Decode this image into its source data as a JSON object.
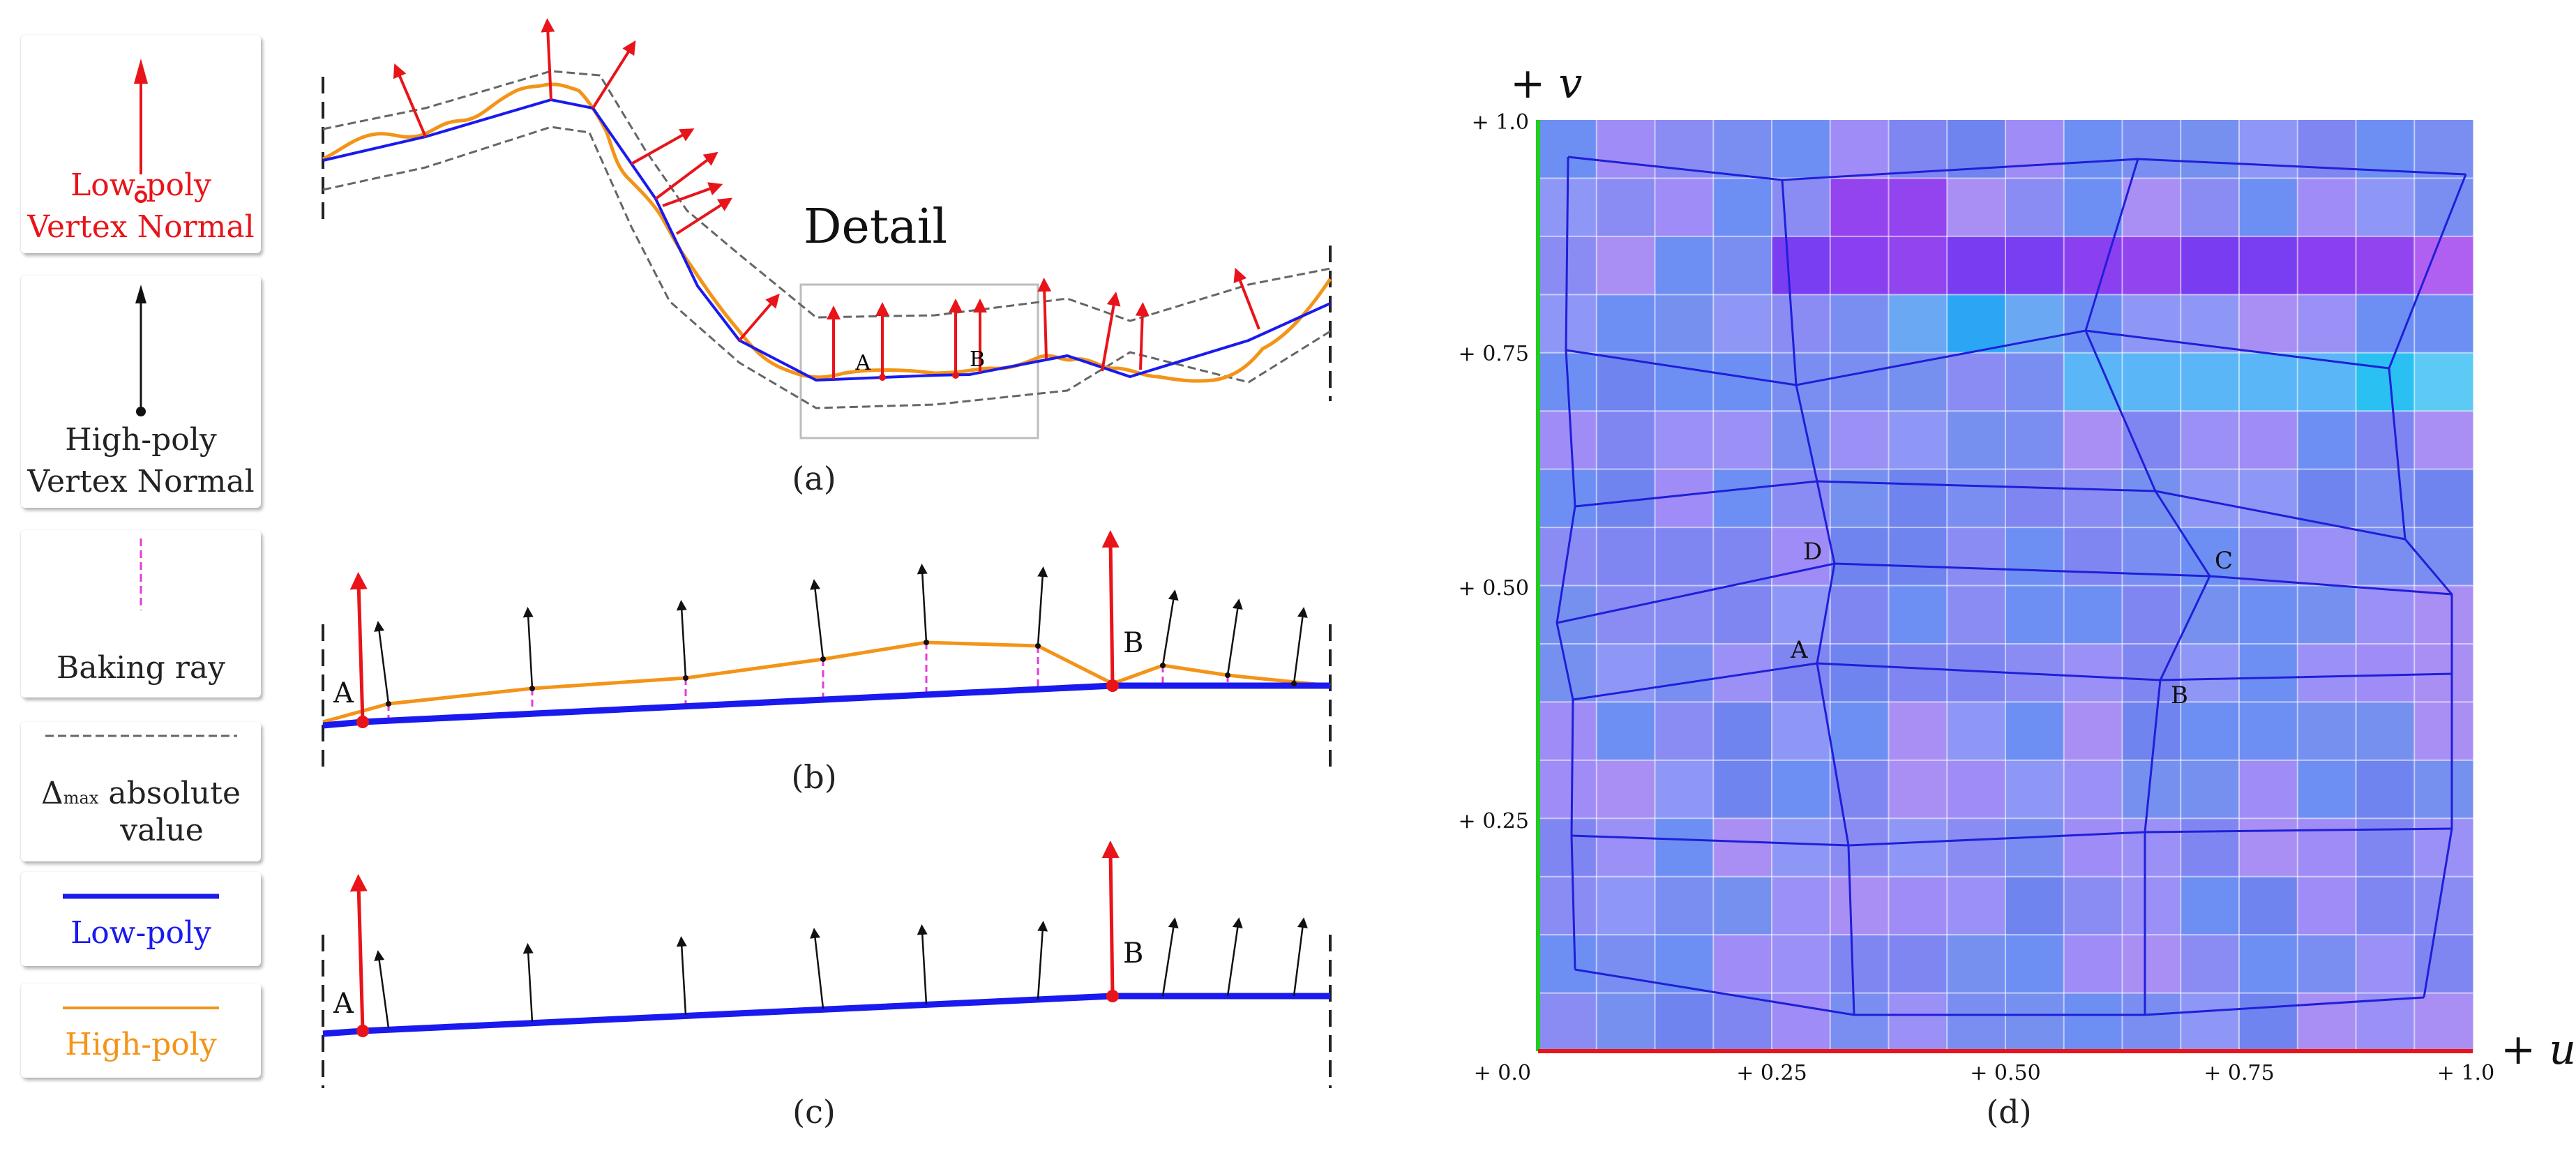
{
  "legend": {
    "low_poly_vertex_normal": [
      "Low-poly",
      "Vertex Normal"
    ],
    "high_poly_vertex_normal": [
      "High-poly",
      "Vertex Normal"
    ],
    "baking_ray": "Baking ray",
    "delta_max": {
      "symbol": "Δ",
      "subscript": "max",
      "line1": "absolute",
      "line2": "value"
    },
    "low_poly": "Low-poly",
    "high_poly": "High-poly"
  },
  "panel_a": {
    "caption": "(a)",
    "detail_label": "Detail",
    "point_a": "A",
    "point_b": "B"
  },
  "panel_b": {
    "caption": "(b)",
    "point_a": "A",
    "point_b": "B"
  },
  "panel_c": {
    "caption": "(c)",
    "point_a": "A",
    "point_b": "B"
  },
  "panel_d": {
    "caption": "(d)",
    "v_axis_label": "+ v",
    "u_axis_label": "+ u",
    "v_ticks": [
      "+ 1.0",
      "+ 0.75",
      "+ 0.50",
      "+ 0.25",
      "+ 0.0"
    ],
    "u_ticks": [
      "+ 0.25",
      "+ 0.50",
      "+ 0.75",
      "+ 1.0"
    ],
    "points": {
      "A": "A",
      "B": "B",
      "C": "C",
      "D": "D"
    }
  },
  "colors": {
    "low_poly": "#1a1aee",
    "high_poly": "#f39418",
    "normal_low": "#e8141a",
    "normal_high": "#111111",
    "baking_ray": "#e23cd8",
    "delta": "#555555",
    "u_axis": "#e8141a",
    "v_axis": "#22cc22"
  }
}
